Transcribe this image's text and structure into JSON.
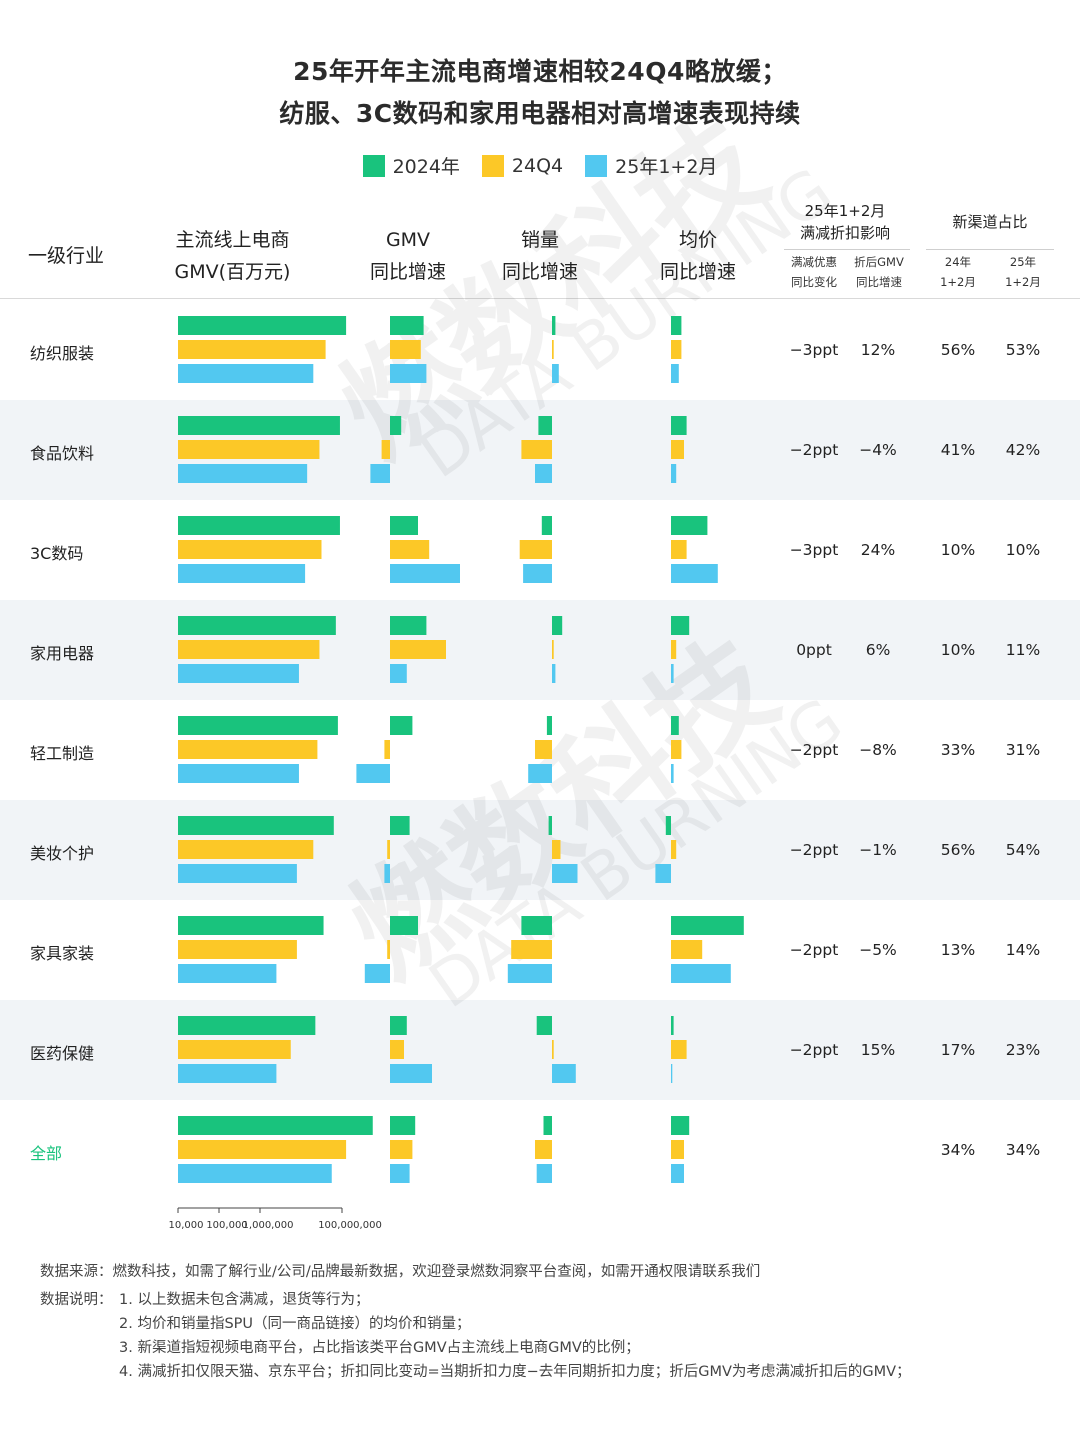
{
  "title_line1": "25年开年主流电商增速相较24Q4略放缓；",
  "title_line2": "纺服、3C数码和家用电器相对高增速表现持续",
  "legend": [
    {
      "label": "2024年",
      "color": "#19c37d"
    },
    {
      "label": "24Q4",
      "color": "#fcc827"
    },
    {
      "label": "25年1+2月",
      "color": "#52c8f0"
    }
  ],
  "headers": {
    "industry": "一级行业",
    "gmv_l1": "主流线上电商",
    "gmv_l2": "GMV(百万元)",
    "gmv_growth_l1": "GMV",
    "gmv_growth_l2": "同比增速",
    "volume_l1": "销量",
    "volume_l2": "同比增速",
    "price_l1": "均价",
    "price_l2": "同比增速",
    "discount_l1": "25年1+2月",
    "discount_l2": "满减折扣影响",
    "discount_sub1_l1": "满减优惠",
    "discount_sub1_l2": "同比变化",
    "discount_sub2_l1": "折后GMV",
    "discount_sub2_l2": "同比增速",
    "channel": "新渠道占比",
    "channel_sub1_l1": "24年",
    "channel_sub1_l2": "1+2月",
    "channel_sub2_l1": "25年",
    "channel_sub2_l2": "1+2月"
  },
  "chart_data": {
    "type": "bar",
    "categories": [
      "纺织服装",
      "食品饮料",
      "3C数码",
      "家用电器",
      "轻工制造",
      "美妆个护",
      "家具家装",
      "医药保健",
      "全部"
    ],
    "gmv_axis": {
      "scale": "log",
      "ticks": [
        "10,000",
        "100,000",
        "1,000,000",
        "100,000,000"
      ]
    },
    "gmv": {
      "2024年": [
        8.1,
        7.95,
        7.95,
        7.85,
        7.9,
        7.8,
        7.55,
        7.35,
        8.75
      ],
      "24Q4": [
        7.6,
        7.45,
        7.5,
        7.45,
        7.4,
        7.3,
        6.9,
        6.75,
        8.1
      ],
      "25年1+2月": [
        7.3,
        7.15,
        7.1,
        6.95,
        6.95,
        6.9,
        6.4,
        6.4,
        7.75
      ]
    },
    "gmv_growth_unit": "%",
    "gmv_growth": {
      "2024年": [
        12,
        4,
        10,
        13,
        8,
        7,
        10,
        6,
        9
      ],
      "24Q4": [
        11,
        -3,
        14,
        20,
        -2,
        -1,
        -1,
        5,
        8
      ],
      "25年1+2月": [
        13,
        -7,
        25,
        6,
        -12,
        -2,
        -9,
        15,
        7
      ]
    },
    "volume_growth": {
      "2024年": [
        2,
        -8,
        -6,
        6,
        -3,
        -2,
        -18,
        -9,
        -5
      ],
      "24Q4": [
        1,
        -18,
        -19,
        1,
        -10,
        5,
        -24,
        1,
        -10
      ],
      "25年1+2月": [
        4,
        -10,
        -17,
        2,
        -14,
        15,
        -26,
        14,
        -9
      ]
    },
    "price_growth": {
      "2024年": [
        4,
        6,
        14,
        7,
        3,
        -2,
        28,
        1,
        7
      ],
      "24Q4": [
        4,
        5,
        6,
        2,
        4,
        2,
        12,
        6,
        5
      ],
      "25年1+2月": [
        3,
        2,
        18,
        1,
        1,
        -6,
        23,
        0.5,
        5
      ]
    },
    "discount_change": [
      "−3ppt",
      "−2ppt",
      "−3ppt",
      "0ppt",
      "−2ppt",
      "−2ppt",
      "−2ppt",
      "−2ppt",
      ""
    ],
    "after_discount_gmv_growth": [
      "12%",
      "−4%",
      "24%",
      "6%",
      "−8%",
      "−1%",
      "−5%",
      "15%",
      ""
    ],
    "new_channel_share_24": [
      "56%",
      "41%",
      "10%",
      "10%",
      "33%",
      "56%",
      "13%",
      "17%",
      "34%"
    ],
    "new_channel_share_25": [
      "53%",
      "42%",
      "10%",
      "11%",
      "31%",
      "54%",
      "14%",
      "23%",
      "34%"
    ]
  },
  "highlight_color": "#19c37d",
  "notes": {
    "source": "数据来源：燃数科技，如需了解行业/公司/品牌最新数据，欢迎登录燃数洞察平台查阅，如需开通权限请联系我们",
    "desc_label": "数据说明：",
    "n1": "1. 以上数据未包含满减，退货等行为；",
    "n2": "2. 均价和销量指SPU（同一商品链接）的均价和销量；",
    "n3": "3. 新渠道指短视频电商平台，占比指该类平台GMV占主流线上电商GMV的比例；",
    "n4": "4. 满减折扣仅限天猫、京东平台；折扣同比变动=当期折扣力度−去年同期折扣力度；折后GMV为考虑满减折扣后的GMV；"
  },
  "watermark": {
    "cn": "燃数科技",
    "en": "DATA BURNING"
  }
}
